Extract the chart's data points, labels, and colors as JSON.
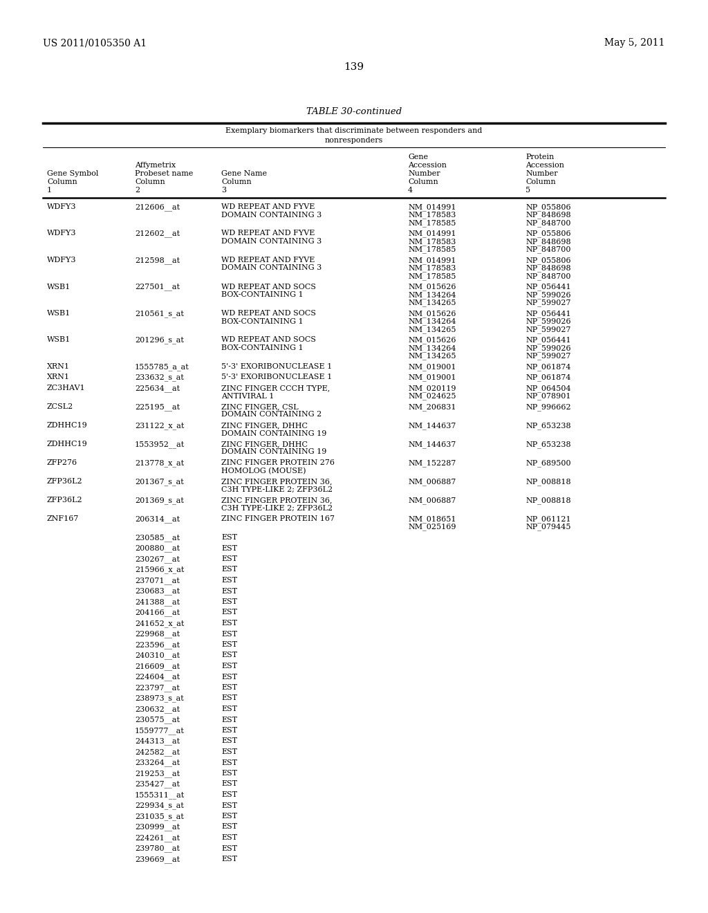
{
  "page_left": "US 2011/0105350 A1",
  "page_right": "May 5, 2011",
  "page_number": "139",
  "table_title": "TABLE 30-continued",
  "table_subtitle1": "Exemplary biomarkers that discriminate between responders and",
  "table_subtitle2": "nonresponders",
  "rows": [
    [
      "WDFY3",
      "212606__at",
      "WD REPEAT AND FYVE\nDOMAIN CONTAINING 3",
      "NM_014991\nNM_178583\nNM_178585",
      "NP_055806\nNP_848698\nNP_848700"
    ],
    [
      "WDFY3",
      "212602__at",
      "WD REPEAT AND FYVE\nDOMAIN CONTAINING 3",
      "NM_014991\nNM_178583\nNM_178585",
      "NP_055806\nNP_848698\nNP_848700"
    ],
    [
      "WDFY3",
      "212598__at",
      "WD REPEAT AND FYVE\nDOMAIN CONTAINING 3",
      "NM_014991\nNM_178583\nNM_178585",
      "NP_055806\nNP_848698\nNP_848700"
    ],
    [
      "WSB1",
      "227501__at",
      "WD REPEAT AND SOCS\nBOX-CONTAINING 1",
      "NM_015626\nNM_134264\nNM_134265",
      "NP_056441\nNP_599026\nNP_599027"
    ],
    [
      "WSB1",
      "210561_s_at",
      "WD REPEAT AND SOCS\nBOX-CONTAINING 1",
      "NM_015626\nNM_134264\nNM_134265",
      "NP_056441\nNP_599026\nNP_599027"
    ],
    [
      "WSB1",
      "201296_s_at",
      "WD REPEAT AND SOCS\nBOX-CONTAINING 1",
      "NM_015626\nNM_134264\nNM_134265",
      "NP_056441\nNP_599026\nNP_599027"
    ],
    [
      "XRN1",
      "1555785_a_at",
      "5'-3' EXORIBONUCLEASE 1",
      "NM_019001",
      "NP_061874"
    ],
    [
      "XRN1",
      "233632_s_at",
      "5'-3' EXORIBONUCLEASE 1",
      "NM_019001",
      "NP_061874"
    ],
    [
      "ZC3HAV1",
      "225634__at",
      "ZINC FINGER CCCH TYPE,\nANTIVIRAL 1",
      "NM_020119\nNM_024625",
      "NP_064504\nNP_078901"
    ],
    [
      "ZCSL2",
      "225195__at",
      "ZINC FINGER, CSL\nDOMAIN CONTAINING 2",
      "NM_206831",
      "NP_996662"
    ],
    [
      "ZDHHC19",
      "231122_x_at",
      "ZINC FINGER, DHHC\nDOMAIN CONTAINING 19",
      "NM_144637",
      "NP_653238"
    ],
    [
      "ZDHHC19",
      "1553952__at",
      "ZINC FINGER, DHHC\nDOMAIN CONTAINING 19",
      "NM_144637",
      "NP_653238"
    ],
    [
      "ZFP276",
      "213778_x_at",
      "ZINC FINGER PROTEIN 276\nHOMOLOG (MOUSE)",
      "NM_152287",
      "NP_689500"
    ],
    [
      "ZFP36L2",
      "201367_s_at",
      "ZINC FINGER PROTEIN 36,\nC3H TYPE-LIKE 2; ZFP36L2",
      "NM_006887",
      "NP_008818"
    ],
    [
      "ZFP36L2",
      "201369_s_at",
      "ZINC FINGER PROTEIN 36,\nC3H TYPE-LIKE 2; ZFP36L2",
      "NM_006887",
      "NP_008818"
    ],
    [
      "ZNF167",
      "206314__at",
      "ZINC FINGER PROTEIN 167",
      "NM_018651\nNM_025169",
      "NP_061121\nNP_079445"
    ],
    [
      "",
      "230585__at",
      "EST",
      "",
      ""
    ],
    [
      "",
      "200880__at",
      "EST",
      "",
      ""
    ],
    [
      "",
      "230267__at",
      "EST",
      "",
      ""
    ],
    [
      "",
      "215966_x_at",
      "EST",
      "",
      ""
    ],
    [
      "",
      "237071__at",
      "EST",
      "",
      ""
    ],
    [
      "",
      "230683__at",
      "EST",
      "",
      ""
    ],
    [
      "",
      "241388__at",
      "EST",
      "",
      ""
    ],
    [
      "",
      "204166__at",
      "EST",
      "",
      ""
    ],
    [
      "",
      "241652_x_at",
      "EST",
      "",
      ""
    ],
    [
      "",
      "229968__at",
      "EST",
      "",
      ""
    ],
    [
      "",
      "223596__at",
      "EST",
      "",
      ""
    ],
    [
      "",
      "240310__at",
      "EST",
      "",
      ""
    ],
    [
      "",
      "216609__at",
      "EST",
      "",
      ""
    ],
    [
      "",
      "224604__at",
      "EST",
      "",
      ""
    ],
    [
      "",
      "223797__at",
      "EST",
      "",
      ""
    ],
    [
      "",
      "238973_s_at",
      "EST",
      "",
      ""
    ],
    [
      "",
      "230632__at",
      "EST",
      "",
      ""
    ],
    [
      "",
      "230575__at",
      "EST",
      "",
      ""
    ],
    [
      "",
      "1559777__at",
      "EST",
      "",
      ""
    ],
    [
      "",
      "244313__at",
      "EST",
      "",
      ""
    ],
    [
      "",
      "242582__at",
      "EST",
      "",
      ""
    ],
    [
      "",
      "233264__at",
      "EST",
      "",
      ""
    ],
    [
      "",
      "219253__at",
      "EST",
      "",
      ""
    ],
    [
      "",
      "235427__at",
      "EST",
      "",
      ""
    ],
    [
      "",
      "1555311__at",
      "EST",
      "",
      ""
    ],
    [
      "",
      "229934_s_at",
      "EST",
      "",
      ""
    ],
    [
      "",
      "231035_s_at",
      "EST",
      "",
      ""
    ],
    [
      "",
      "230999__at",
      "EST",
      "",
      ""
    ],
    [
      "",
      "224261__at",
      "EST",
      "",
      ""
    ],
    [
      "",
      "239780__at",
      "EST",
      "",
      ""
    ],
    [
      "",
      "239669__at",
      "EST",
      "",
      ""
    ]
  ]
}
